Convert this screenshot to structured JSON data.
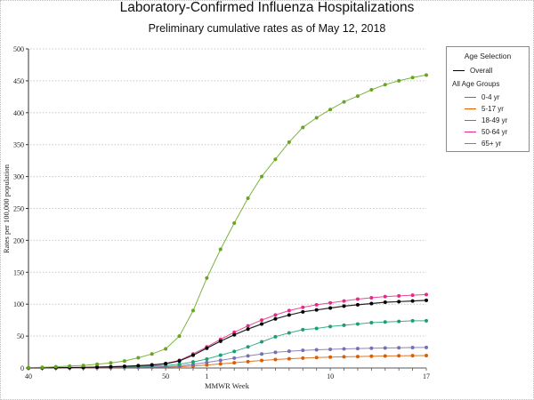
{
  "chart_data": {
    "type": "line",
    "title": "Laboratory-Confirmed Influenza Hospitalizations",
    "subtitle": "Preliminary cumulative rates as of May 12, 2018",
    "xlabel": "MMWR Week",
    "ylabel": "Rates per 100,000 population",
    "ylim": [
      0,
      500
    ],
    "yticks": [
      0,
      50,
      100,
      150,
      200,
      250,
      300,
      350,
      400,
      450,
      500
    ],
    "grid": "horizontal-dotted",
    "legend_position": "right",
    "x": [
      40,
      41,
      42,
      43,
      44,
      45,
      46,
      47,
      48,
      49,
      50,
      51,
      52,
      1,
      2,
      3,
      4,
      5,
      6,
      7,
      8,
      9,
      10,
      11,
      12,
      13,
      14,
      15,
      16,
      17
    ],
    "xtick_labels": {
      "0": "40",
      "10": "50",
      "13": "1",
      "22": "10",
      "29": "17"
    },
    "series": [
      {
        "name": "Overall",
        "color": "#000000",
        "values": [
          0.1,
          0.3,
          0.5,
          0.7,
          1.0,
          1.4,
          1.9,
          2.6,
          3.6,
          4.8,
          6.8,
          11,
          20,
          31,
          42,
          52,
          61,
          69,
          77,
          83,
          88,
          91,
          94,
          97,
          99,
          101,
          103,
          104,
          105,
          106
        ]
      },
      {
        "name": "0-4 yr",
        "color": "#1b9e77",
        "values": [
          0.1,
          0.2,
          0.3,
          0.5,
          0.7,
          0.9,
          1.2,
          1.6,
          2.2,
          2.9,
          4.0,
          6.0,
          9.5,
          14,
          20,
          26,
          33,
          41,
          49,
          55,
          60,
          62,
          65,
          67,
          69,
          71,
          72,
          73,
          74,
          74
        ]
      },
      {
        "name": "5-17 yr",
        "color": "#d95f02",
        "values": [
          0.0,
          0.1,
          0.1,
          0.2,
          0.2,
          0.3,
          0.4,
          0.6,
          0.8,
          1.0,
          1.4,
          2.0,
          3.2,
          4.7,
          6.4,
          8.2,
          10,
          11.8,
          13.3,
          14.5,
          15.5,
          16.3,
          17,
          17.6,
          18,
          18.4,
          18.8,
          19.1,
          19.3,
          19.5
        ]
      },
      {
        "name": "18-49 yr",
        "color": "#7570b3",
        "values": [
          0.0,
          0.1,
          0.2,
          0.2,
          0.3,
          0.4,
          0.6,
          0.8,
          1.1,
          1.5,
          2.1,
          3.3,
          5.6,
          8.6,
          12,
          15.5,
          19,
          22,
          24.5,
          26.3,
          27.6,
          28.5,
          29.3,
          30,
          30.5,
          31,
          31.4,
          31.7,
          32,
          32.2
        ]
      },
      {
        "name": "50-64 yr",
        "color": "#e7298a",
        "values": [
          0.1,
          0.2,
          0.4,
          0.6,
          0.9,
          1.3,
          1.8,
          2.5,
          3.5,
          4.8,
          7.0,
          12,
          22,
          33,
          45,
          56,
          66,
          75,
          83,
          90,
          95,
          99,
          102,
          105,
          108,
          110,
          112,
          113,
          114,
          115
        ]
      },
      {
        "name": "65+ yr",
        "color": "#66a61e",
        "values": [
          0.5,
          1,
          2,
          3,
          4,
          6,
          8,
          11,
          16,
          22,
          30,
          50,
          90,
          141,
          186,
          227,
          266,
          300,
          327,
          354,
          377,
          392,
          405,
          417,
          426,
          436,
          444,
          450,
          455,
          459
        ]
      }
    ]
  },
  "legend": {
    "title": "Age Selection",
    "overall_label": "Overall",
    "group_heading": "All Age Groups",
    "items": [
      "0-4 yr",
      "5-17 yr",
      "18-49 yr",
      "50-64 yr",
      "65+ yr"
    ]
  }
}
